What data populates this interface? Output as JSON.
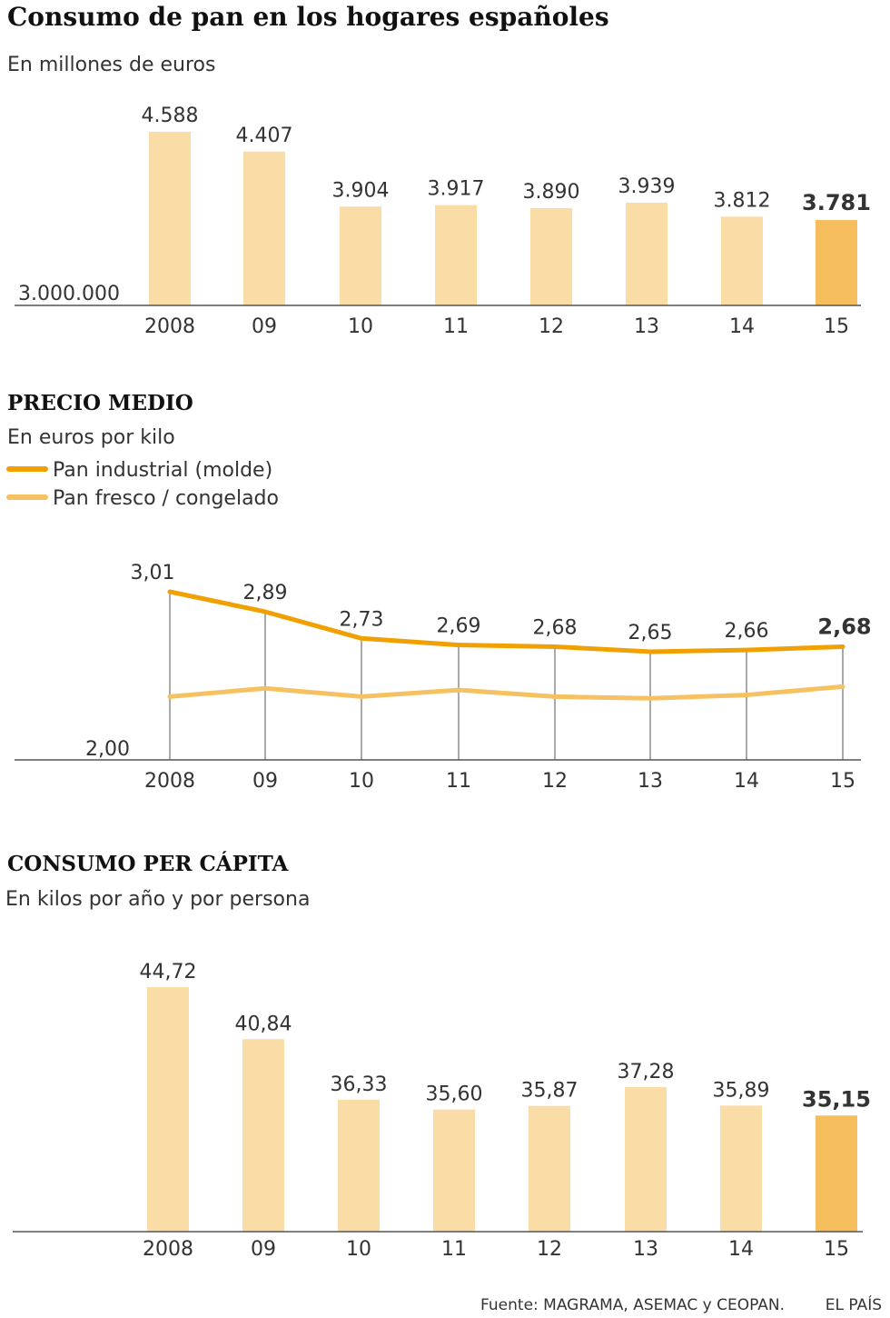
{
  "header": {
    "title": "Consumo de pan en los hogares españoles"
  },
  "colors": {
    "bar": "#f9dca6",
    "bar_highlight": "#f5bd5c",
    "line_industrial": "#f0a000",
    "line_fresco": "#f6c160",
    "axis": "#555555",
    "text": "#333333",
    "title": "#111111"
  },
  "chart_data": [
    {
      "id": "consumo",
      "type": "bar",
      "title": "",
      "subtitle": "En millones de euros",
      "categories": [
        "2008",
        "09",
        "10",
        "11",
        "12",
        "13",
        "14",
        "15"
      ],
      "values": [
        4588,
        4407,
        3904,
        3917,
        3890,
        3939,
        3812,
        3781
      ],
      "value_labels": [
        "4.588",
        "4.407",
        "3.904",
        "3.917",
        "3.890",
        "3.939",
        "3.812",
        "3.781"
      ],
      "baseline_label": "3.000.000",
      "ylim": [
        3000,
        4588
      ],
      "highlight_index": 7
    },
    {
      "id": "precio",
      "type": "line",
      "title": "PRECIO MEDIO",
      "subtitle": "En euros por kilo",
      "categories": [
        "2008",
        "09",
        "10",
        "11",
        "12",
        "13",
        "14",
        "15"
      ],
      "baseline_label": "2,00",
      "ylim": [
        2.0,
        3.01
      ],
      "grid": false,
      "legend": "top-left",
      "series": [
        {
          "name": "Pan industrial (molde)",
          "values": [
            3.01,
            2.89,
            2.73,
            2.69,
            2.68,
            2.65,
            2.66,
            2.68
          ],
          "value_labels": [
            "3,01",
            "2,89",
            "2,73",
            "2,69",
            "2,68",
            "2,65",
            "2,66",
            "2,68"
          ]
        },
        {
          "name": "Pan fresco / congelado",
          "values": [
            2.38,
            2.43,
            2.38,
            2.42,
            2.38,
            2.37,
            2.39,
            2.44
          ]
        }
      ]
    },
    {
      "id": "percapita",
      "type": "bar",
      "title": "CONSUMO PER CÁPITA",
      "subtitle": "En kilos por año y por persona",
      "categories": [
        "2008",
        "09",
        "10",
        "11",
        "12",
        "13",
        "14",
        "15"
      ],
      "values": [
        44.72,
        40.84,
        36.33,
        35.6,
        35.87,
        37.28,
        35.89,
        35.15
      ],
      "value_labels": [
        "44,72",
        "40,84",
        "36,33",
        "35,60",
        "35,87",
        "37,28",
        "35,89",
        "35,15"
      ],
      "ylim": [
        0,
        44.72
      ],
      "highlight_index": 7
    }
  ],
  "footer": {
    "source": "Fuente: MAGRAMA, ASEMAC y CEOPAN.",
    "brand": "EL PAÍS"
  }
}
